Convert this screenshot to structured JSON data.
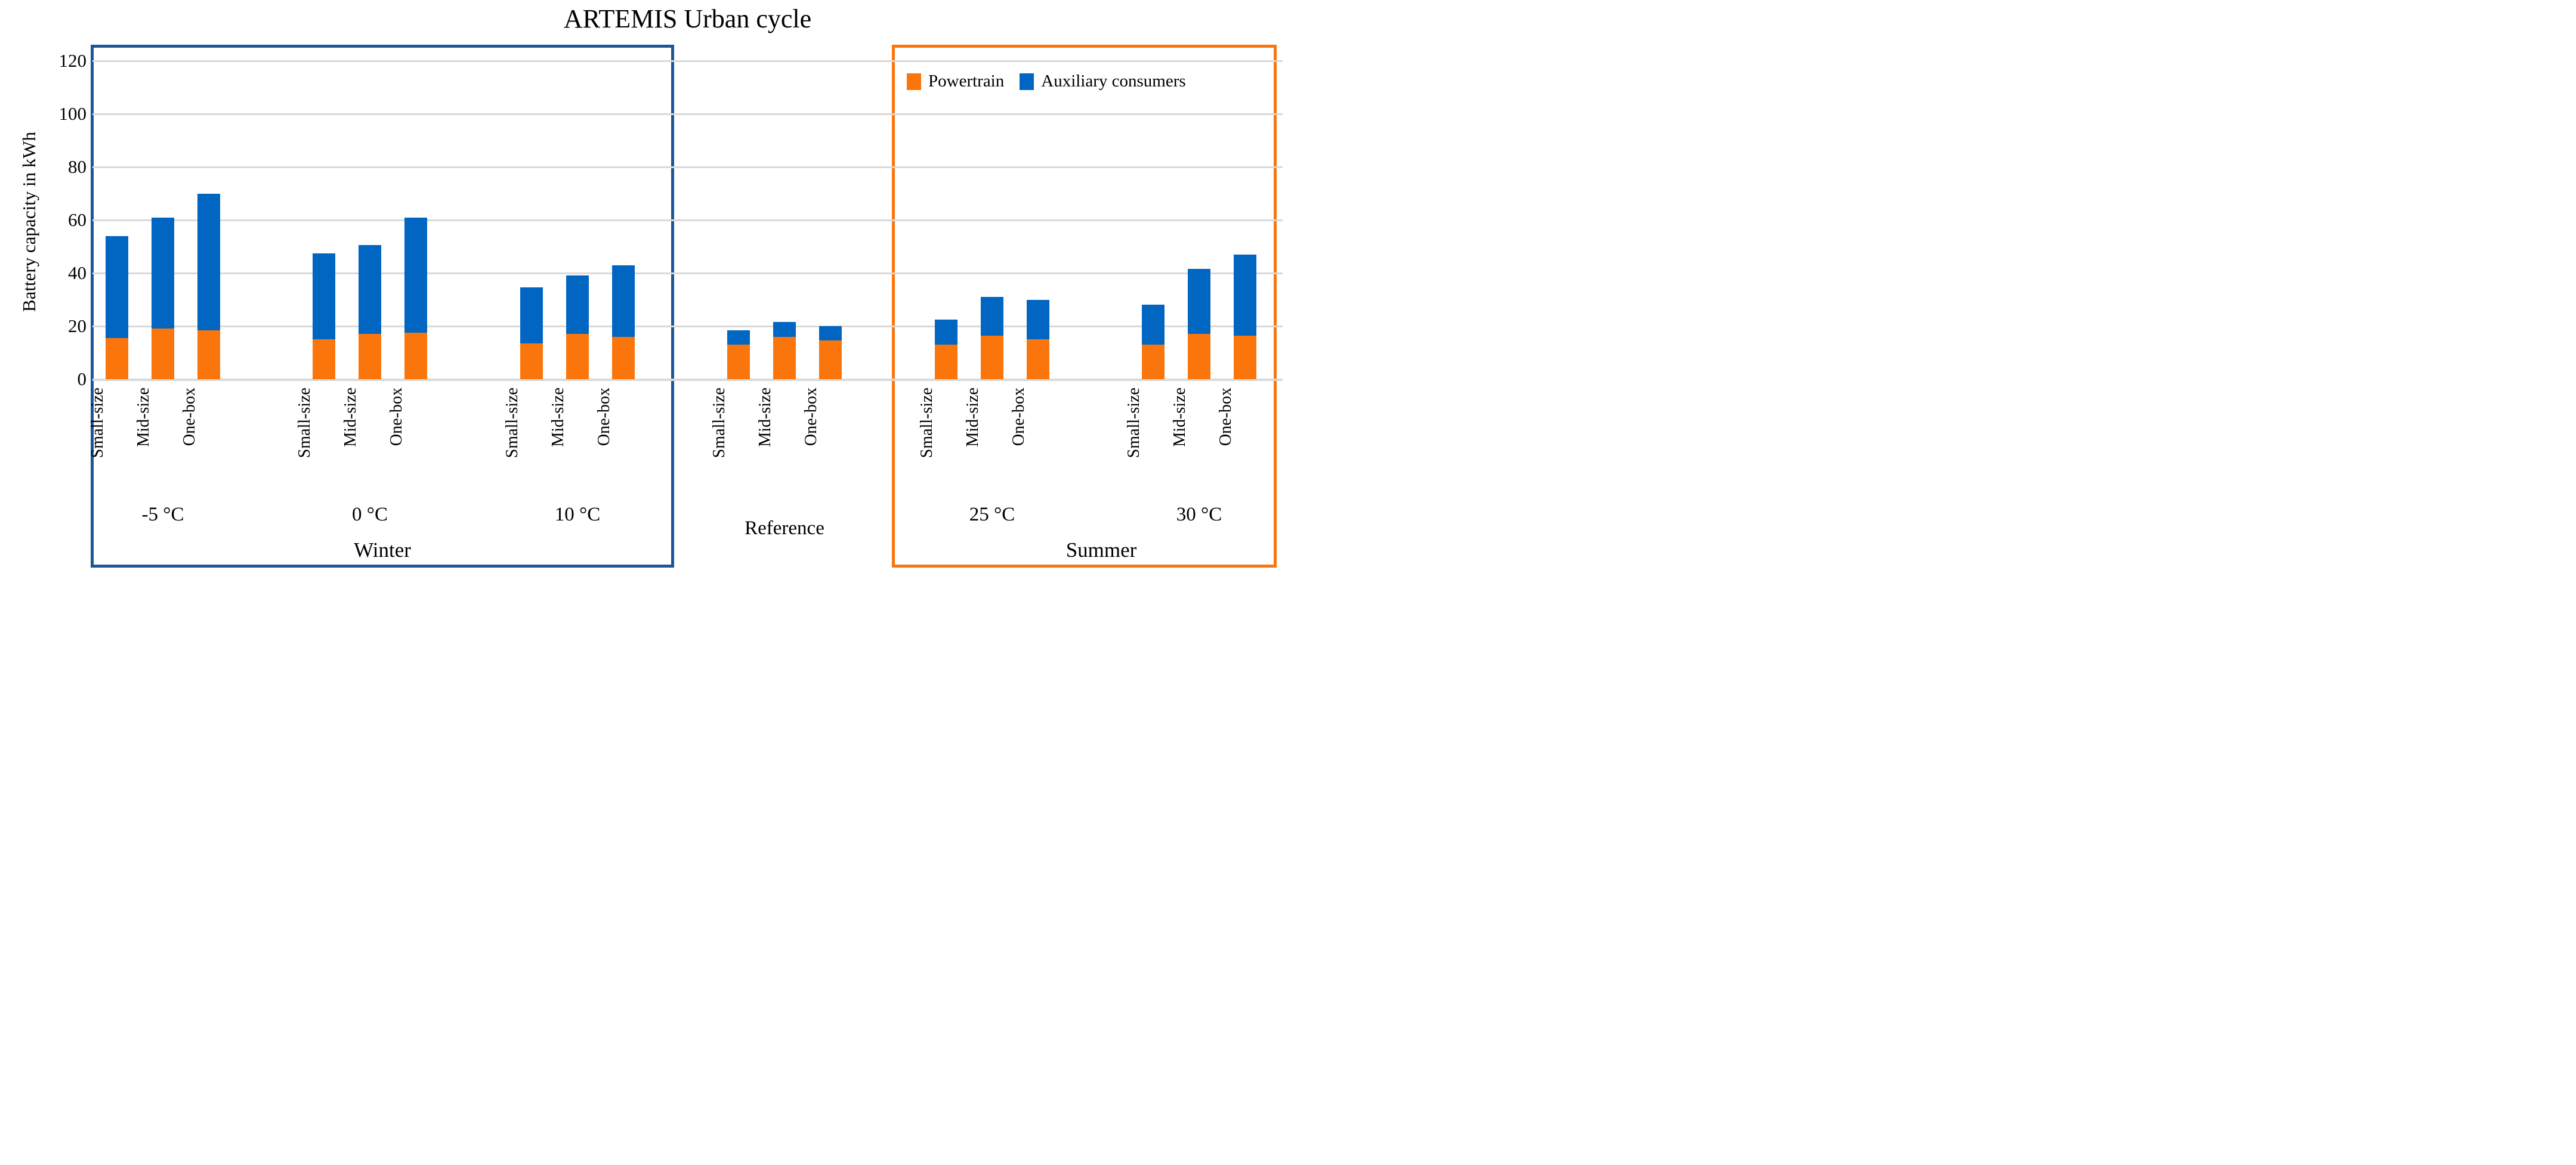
{
  "title": "ARTEMIS Urban cycle",
  "y_axis": {
    "title": "Battery capacity in kWh",
    "min": 0,
    "max": 120,
    "step": 20,
    "ticks": [
      "0",
      "20",
      "40",
      "60",
      "80",
      "100",
      "120"
    ]
  },
  "legend": {
    "items": [
      {
        "label": "Powertrain",
        "color": "#FA750C"
      },
      {
        "label": "Auxiliary consumers",
        "color": "#0066C2"
      }
    ]
  },
  "sections": {
    "winter": {
      "label": "Winter",
      "border_color": "#1B5796"
    },
    "summer": {
      "label": "Summer",
      "border_color": "#FA750C"
    }
  },
  "chart_data": {
    "type": "bar",
    "stacked": true,
    "title": "ARTEMIS Urban cycle",
    "ylabel": "Battery capacity in kWh",
    "ylim": [
      0,
      120
    ],
    "grid": true,
    "legend_position": "top-right",
    "series_names": [
      "Powertrain",
      "Auxiliary consumers"
    ],
    "categories": [
      "Small-size",
      "Mid-size",
      "One-box"
    ],
    "colors": {
      "powertrain": "#FA750C",
      "auxiliary": "#0066C2",
      "gridline": "#D9D9D9",
      "winter_box": "#1B5796",
      "summer_box": "#FA750C"
    },
    "groups": [
      {
        "label": "-5 °C",
        "section": "Winter",
        "bars": [
          {
            "category": "Small-size",
            "powertrain": 15.5,
            "auxiliary": 38.5
          },
          {
            "category": "Mid-size",
            "powertrain": 19,
            "auxiliary": 42
          },
          {
            "category": "One-box",
            "powertrain": 18.5,
            "auxiliary": 51.5
          }
        ]
      },
      {
        "label": "0 °C",
        "section": "Winter",
        "bars": [
          {
            "category": "Small-size",
            "powertrain": 15,
            "auxiliary": 32.5
          },
          {
            "category": "Mid-size",
            "powertrain": 17,
            "auxiliary": 33.5
          },
          {
            "category": "One-box",
            "powertrain": 17.5,
            "auxiliary": 43.5
          }
        ]
      },
      {
        "label": "10 °C",
        "section": "Winter",
        "bars": [
          {
            "category": "Small-size",
            "powertrain": 13.5,
            "auxiliary": 21
          },
          {
            "category": "Mid-size",
            "powertrain": 17,
            "auxiliary": 22
          },
          {
            "category": "One-box",
            "powertrain": 16,
            "auxiliary": 27
          }
        ]
      },
      {
        "label": "Reference",
        "section": "",
        "bars": [
          {
            "category": "Small-size",
            "powertrain": 13,
            "auxiliary": 5.5
          },
          {
            "category": "Mid-size",
            "powertrain": 16,
            "auxiliary": 5.5
          },
          {
            "category": "One-box",
            "powertrain": 14.5,
            "auxiliary": 5.5
          }
        ]
      },
      {
        "label": "25 °C",
        "section": "Summer",
        "bars": [
          {
            "category": "Small-size",
            "powertrain": 13,
            "auxiliary": 9.5
          },
          {
            "category": "Mid-size",
            "powertrain": 16.5,
            "auxiliary": 14.5
          },
          {
            "category": "One-box",
            "powertrain": 15,
            "auxiliary": 15
          }
        ]
      },
      {
        "label": "30 °C",
        "section": "Summer",
        "bars": [
          {
            "category": "Small-size",
            "powertrain": 13,
            "auxiliary": 15
          },
          {
            "category": "Mid-size",
            "powertrain": 17,
            "auxiliary": 24.5
          },
          {
            "category": "One-box",
            "powertrain": 16.5,
            "auxiliary": 30.5
          }
        ]
      }
    ]
  }
}
